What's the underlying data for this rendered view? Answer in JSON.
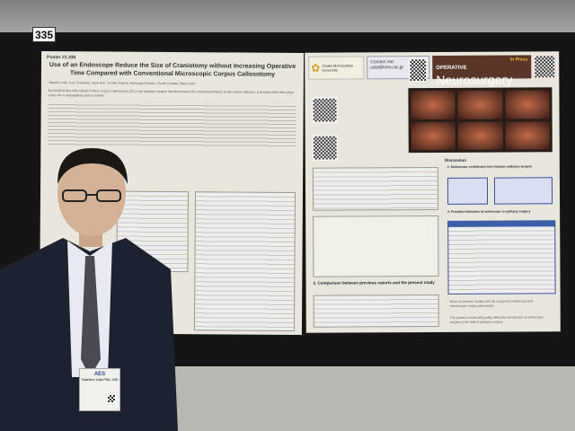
{
  "booth_number": "335",
  "left_poster": {
    "poster_number": "Poster #1.335",
    "title": "Use of an Endoscope Reduce the Size of Craniotomy without Increasing Operative Time Compared with Conventional Microscopic Corpus Callosotomy",
    "authors": "Takehiro Uda, Yuzo Terakawa, Saya Koh, Yoshiko Kojima, Noritsugu Kunihiro, Ryoko Umaba, Takeo Goto",
    "background": "BACKGROUND AND OBJECTIVES: Corpus callosotomy (CC) is an epilepsy surgery that disconnects the commissural fibers at the corpus callosum, a structure that often plays a key role in propagating seizure activity."
  },
  "right_poster": {
    "university": "Osaka Metropolitan University",
    "contact_label": "Contact me:",
    "contact_email": "udat@omu.ac.jp",
    "journal_small": "OPERATIVE",
    "journal_big": "Neurosurgery",
    "journal_status": "In Press",
    "discussion": "Discussion",
    "point1": "1. Endoscope contributes less-invasive epilepsy surgery",
    "point2": "2. Possible indication of endoscope in epilepsy surgery",
    "conclusion1": "None of previous studies directly compared endoscopic and microscopic corpus callosotomy",
    "conclusion2": "The present results will greatly affect the introduction of endoscopic surgery in the field of epilepsy surgery",
    "comparison": "3. Comparison between previous reports and the present study"
  },
  "badge": {
    "org": "AES",
    "name": "Takehiro Uda PhD, MD"
  }
}
